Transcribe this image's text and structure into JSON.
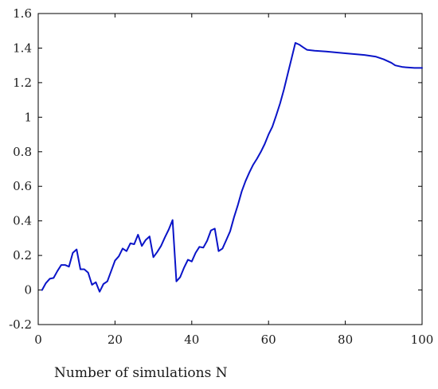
{
  "chart_data": {
    "type": "line",
    "title": "",
    "xlabel": "Number of simulations N",
    "ylabel": "",
    "xlim": [
      0,
      100
    ],
    "ylim": [
      -0.2,
      1.6
    ],
    "xticks": [
      0,
      20,
      40,
      60,
      80,
      100
    ],
    "yticks": [
      -0.2,
      0,
      0.2,
      0.4,
      0.6,
      0.8,
      1,
      1.2,
      1.4,
      1.6
    ],
    "xtick_labels": [
      "0",
      "20",
      "40",
      "60",
      "80",
      "100"
    ],
    "ytick_labels": [
      "-0.2",
      "0",
      "0.2",
      "0.4",
      "0.6",
      "0.8",
      "1",
      "1.2",
      "1.4",
      "1.6"
    ],
    "grid": false,
    "line_color": "#0a14c8",
    "series": [
      {
        "x": [
          1,
          2,
          3,
          4,
          5,
          6,
          7,
          8,
          9,
          10,
          11,
          12,
          13,
          14,
          15,
          16,
          17,
          18,
          19,
          20,
          21,
          22,
          23,
          24,
          25,
          26,
          27,
          28,
          29,
          30,
          31,
          32,
          33,
          34,
          35,
          36,
          37,
          38,
          39,
          40,
          41,
          42,
          43,
          44,
          45,
          46,
          47,
          48,
          49,
          50,
          51,
          52,
          53,
          54,
          55,
          56,
          57,
          58,
          59,
          60,
          61,
          62,
          63,
          64,
          65,
          66,
          67,
          68,
          69,
          70,
          72,
          75,
          80,
          85,
          88,
          90,
          92,
          93,
          95,
          98,
          100
        ],
        "y": [
          0,
          0.04,
          0.065,
          0.07,
          0.11,
          0.145,
          0.145,
          0.135,
          0.215,
          0.235,
          0.12,
          0.12,
          0.1,
          0.03,
          0.045,
          -0.01,
          0.035,
          0.05,
          0.11,
          0.17,
          0.195,
          0.24,
          0.225,
          0.27,
          0.265,
          0.32,
          0.255,
          0.29,
          0.31,
          0.19,
          0.22,
          0.255,
          0.305,
          0.35,
          0.405,
          0.05,
          0.075,
          0.13,
          0.175,
          0.165,
          0.215,
          0.25,
          0.245,
          0.285,
          0.345,
          0.355,
          0.225,
          0.24,
          0.29,
          0.34,
          0.42,
          0.49,
          0.57,
          0.63,
          0.68,
          0.725,
          0.76,
          0.8,
          0.845,
          0.9,
          0.945,
          1.01,
          1.08,
          1.16,
          1.25,
          1.34,
          1.43,
          1.42,
          1.405,
          1.39,
          1.385,
          1.38,
          1.37,
          1.36,
          1.35,
          1.335,
          1.315,
          1.3,
          1.29,
          1.285,
          1.285
        ]
      }
    ]
  }
}
